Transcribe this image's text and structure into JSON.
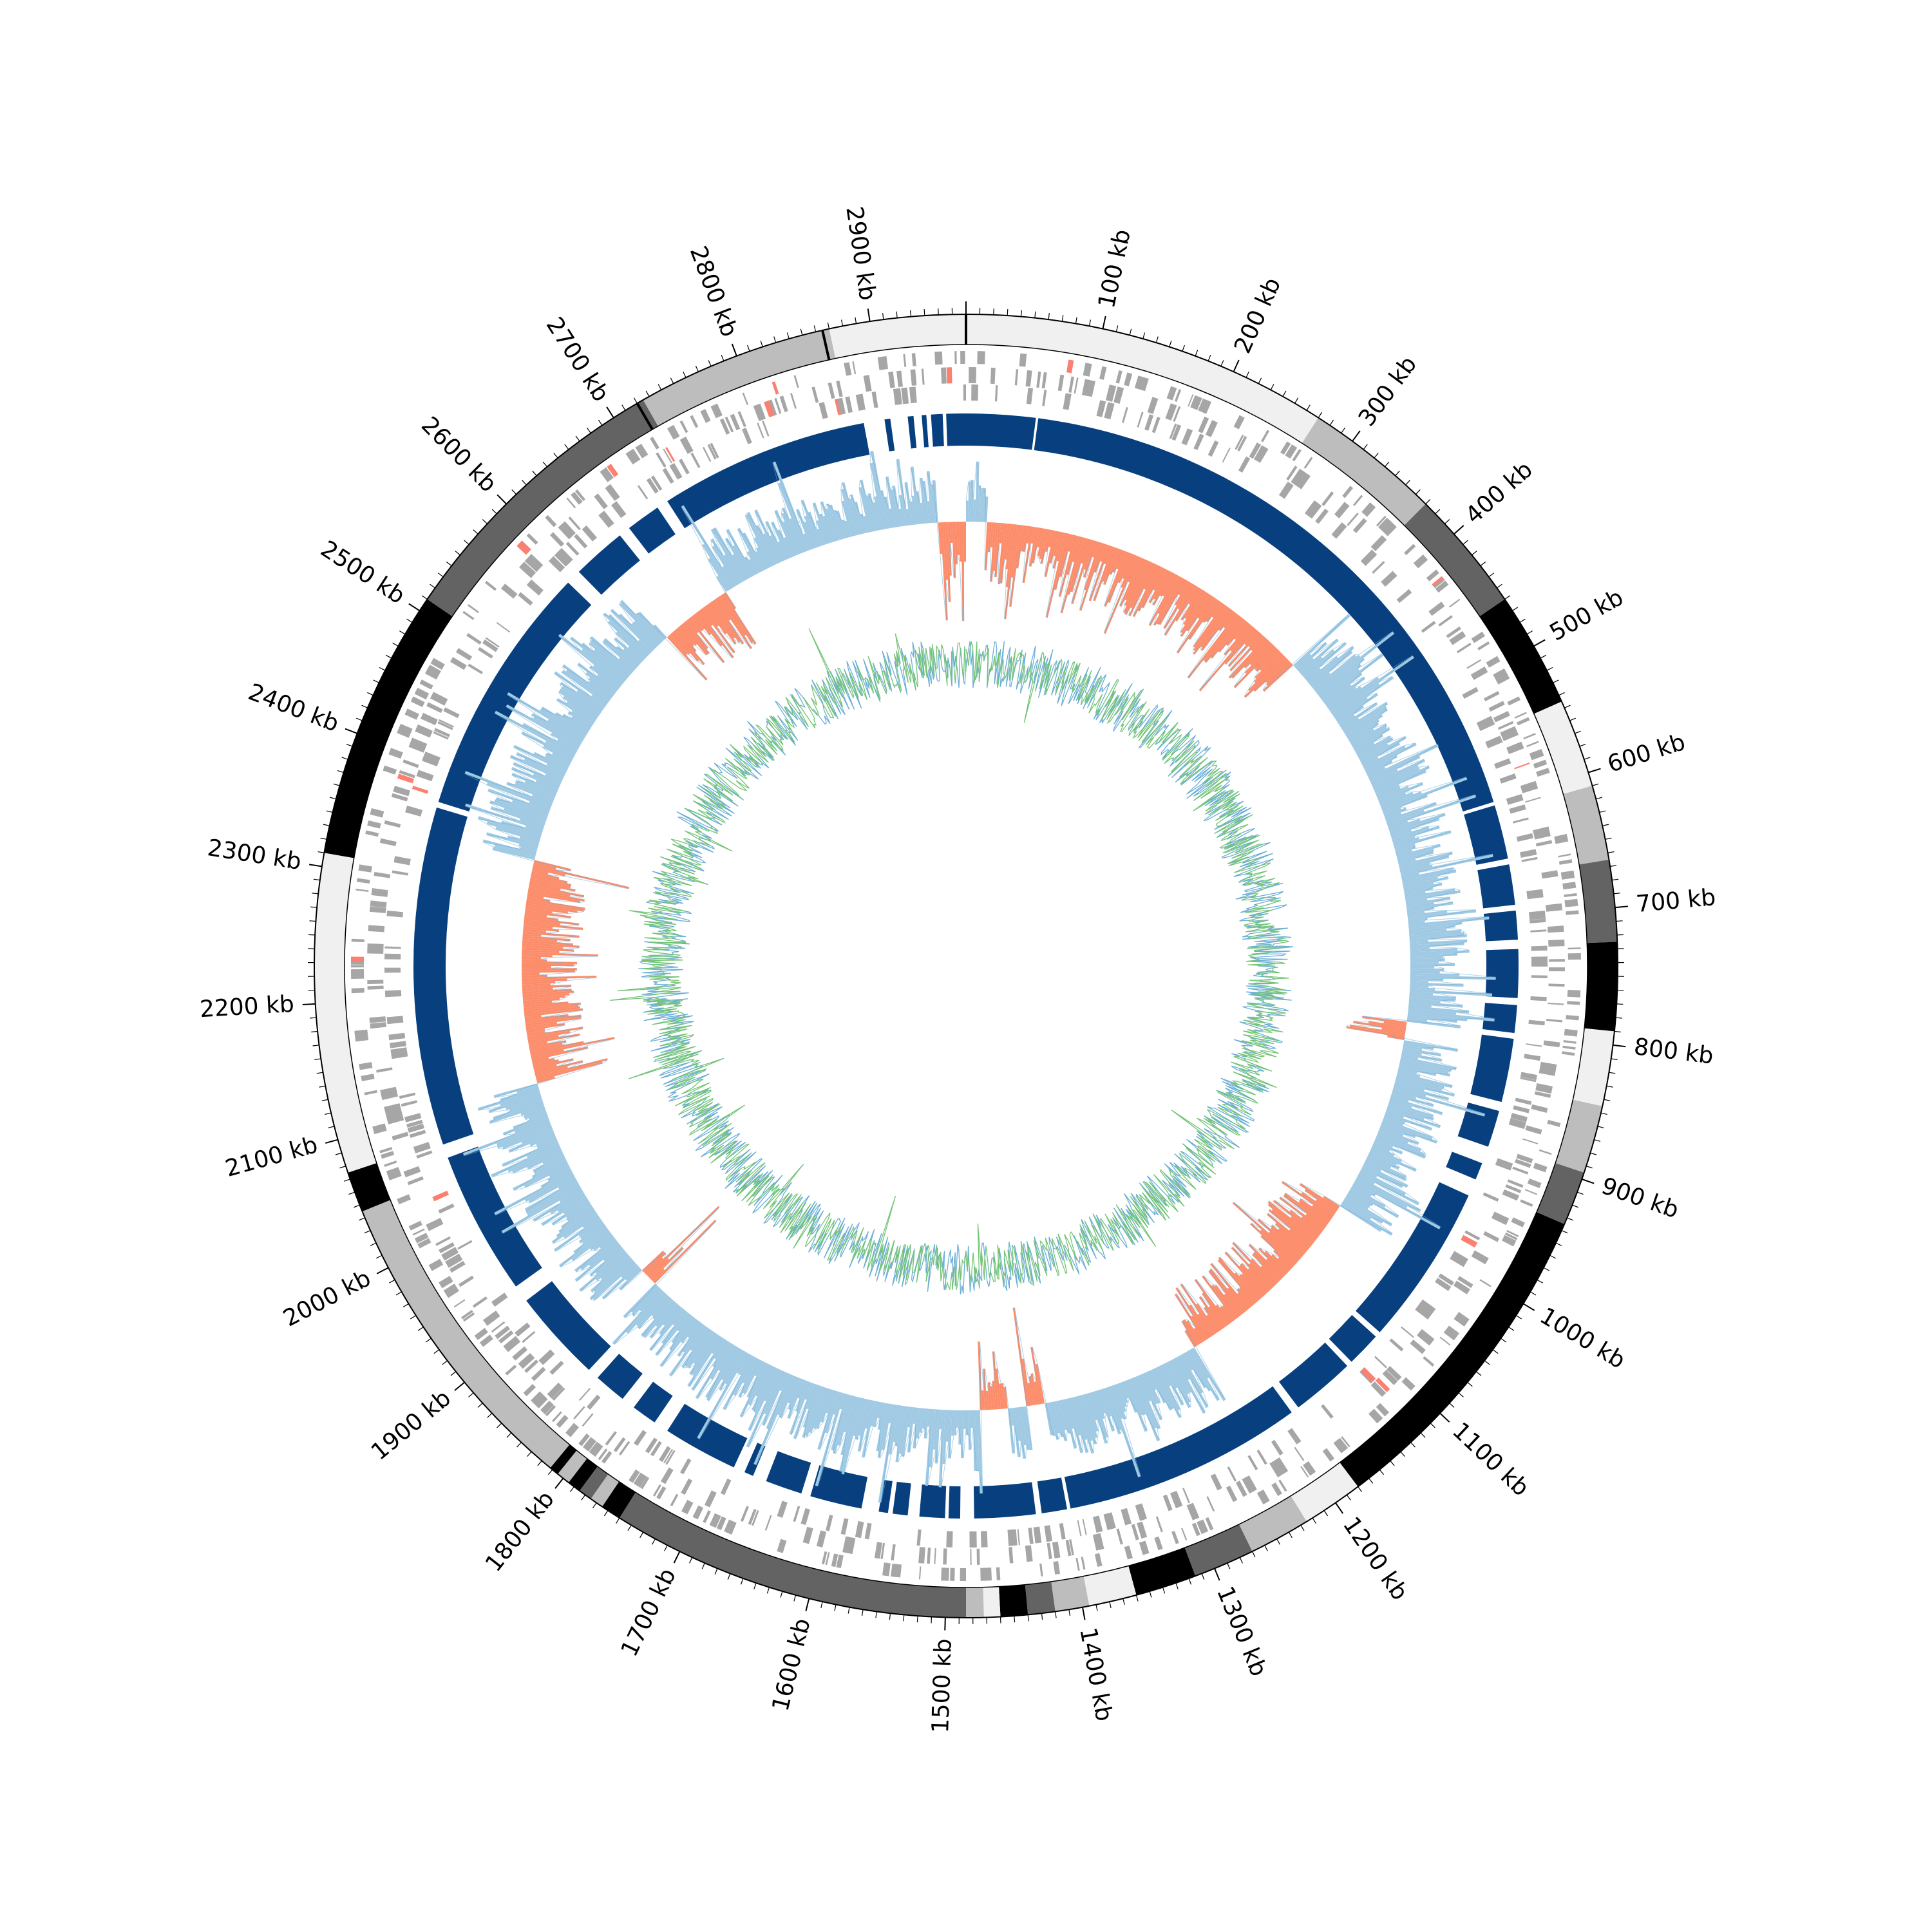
{
  "figure": {
    "type": "circular genome map"
  },
  "axis": {
    "genome_length_kb": 2970,
    "major_tick_step_kb": 100,
    "minor_tick_step_kb": 10,
    "unit_suffix": " kb",
    "tick_labels": [
      "100 kb",
      "200 kb",
      "300 kb",
      "400 kb",
      "500 kb",
      "600 kb",
      "700 kb",
      "800 kb",
      "900 kb",
      "1000 kb",
      "1100 kb",
      "1200 kb",
      "1300 kb",
      "1400 kb",
      "1500 kb",
      "1600 kb",
      "1700 kb",
      "1800 kb",
      "1900 kb",
      "2000 kb",
      "2100 kb",
      "2200 kb",
      "2300 kb",
      "2400 kb",
      "2500 kb",
      "2600 kb",
      "2700 kb",
      "2800 kb",
      "2900 kb"
    ]
  },
  "colors": {
    "band_shades": [
      "#f0f0f0",
      "#bdbdbd",
      "#636363",
      "#000000"
    ],
    "feature_grey": "#a6a6a6",
    "feature_red": "#fb8072",
    "block_blue": "#08407f",
    "skew_positive": "#a0c9e3",
    "skew_line": "#6baed6",
    "skew_negative": "#fc8d6b",
    "gc_line": "#74c476",
    "gc_blue": "#6baed6",
    "outline": "#000000"
  },
  "outer_bands_kb": [
    {
      "start": 0,
      "end": 270,
      "shade": 0
    },
    {
      "start": 270,
      "end": 370,
      "shade": 1
    },
    {
      "start": 370,
      "end": 460,
      "shade": 2
    },
    {
      "start": 460,
      "end": 545,
      "shade": 3
    },
    {
      "start": 545,
      "end": 610,
      "shade": 0
    },
    {
      "start": 610,
      "end": 665,
      "shade": 1
    },
    {
      "start": 665,
      "end": 725,
      "shade": 2
    },
    {
      "start": 725,
      "end": 790,
      "shade": 3
    },
    {
      "start": 790,
      "end": 845,
      "shade": 0
    },
    {
      "start": 845,
      "end": 895,
      "shade": 1
    },
    {
      "start": 895,
      "end": 935,
      "shade": 2
    },
    {
      "start": 935,
      "end": 1180,
      "shade": 3
    },
    {
      "start": 1180,
      "end": 1225,
      "shade": 0
    },
    {
      "start": 1225,
      "end": 1270,
      "shade": 1
    },
    {
      "start": 1270,
      "end": 1315,
      "shade": 2
    },
    {
      "start": 1315,
      "end": 1360,
      "shade": 3
    },
    {
      "start": 1360,
      "end": 1395,
      "shade": 0
    },
    {
      "start": 1395,
      "end": 1420,
      "shade": 1
    },
    {
      "start": 1420,
      "end": 1440,
      "shade": 2
    },
    {
      "start": 1440,
      "end": 1460,
      "shade": 3
    },
    {
      "start": 1460,
      "end": 1472,
      "shade": 0
    },
    {
      "start": 1472,
      "end": 1485,
      "shade": 1
    },
    {
      "start": 1485,
      "end": 1750,
      "shade": 2
    },
    {
      "start": 1750,
      "end": 1765,
      "shade": 3
    },
    {
      "start": 1765,
      "end": 1775,
      "shade": 1
    },
    {
      "start": 1775,
      "end": 1785,
      "shade": 2
    },
    {
      "start": 1785,
      "end": 1795,
      "shade": 3
    },
    {
      "start": 1795,
      "end": 1805,
      "shade": 1
    },
    {
      "start": 1805,
      "end": 1812,
      "shade": 3
    },
    {
      "start": 1812,
      "end": 2045,
      "shade": 1
    },
    {
      "start": 2045,
      "end": 2075,
      "shade": 3
    },
    {
      "start": 2075,
      "end": 2310,
      "shade": 0
    },
    {
      "start": 2310,
      "end": 2510,
      "shade": 3
    },
    {
      "start": 2510,
      "end": 2725,
      "shade": 2
    },
    {
      "start": 2725,
      "end": 2870,
      "shade": 1
    },
    {
      "start": 2870,
      "end": 2970,
      "shade": 0
    }
  ],
  "gene_track_seed": 7,
  "block_gaps_kb": [
    [
      60,
      62
    ],
    [
      2882,
      2895
    ],
    [
      2895,
      2900
    ],
    [
      2905,
      2920
    ],
    [
      2925,
      2932
    ],
    [
      2936,
      2940
    ],
    [
      2950,
      2953
    ],
    [
      2590,
      2603
    ],
    [
      2650,
      2660
    ],
    [
      2690,
      2700
    ],
    [
      2365,
      2370
    ],
    [
      2060,
      2072
    ],
    [
      1920,
      1935
    ],
    [
      1830,
      1840
    ],
    [
      1790,
      1802
    ],
    [
      1755,
      1768
    ],
    [
      1680,
      1690
    ],
    [
      1660,
      1672
    ],
    [
      1620,
      1628
    ],
    [
      1560,
      1575
    ],
    [
      1548,
      1552
    ],
    [
      1525,
      1535
    ],
    [
      1500,
      1503
    ],
    [
      1478,
      1490
    ],
    [
      1420,
      1425
    ],
    [
      1395,
      1398
    ],
    [
      1180,
      1187
    ],
    [
      1120,
      1125
    ],
    [
      1085,
      1090
    ],
    [
      930,
      945
    ],
    [
      900,
      915
    ],
    [
      860,
      868
    ],
    [
      800,
      805
    ],
    [
      770,
      776
    ],
    [
      720,
      728
    ],
    [
      690,
      695
    ],
    [
      650,
      655
    ],
    [
      600,
      603
    ]
  ],
  "skew_negative_regions_kb": [
    [
      20,
      390
    ],
    [
      800,
      820
    ],
    [
      1010,
      1230
    ],
    [
      1400,
      1420
    ],
    [
      1440,
      1470
    ],
    [
      1850,
      1870
    ],
    [
      2100,
      2340
    ],
    [
      2620,
      2700
    ],
    [
      2940,
      2970
    ]
  ]
}
